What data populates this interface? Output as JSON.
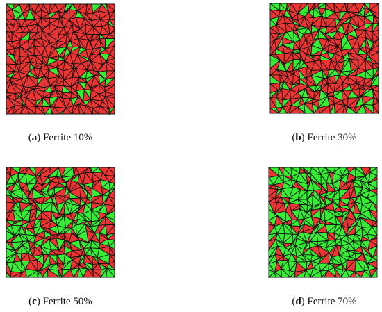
{
  "panels": [
    {
      "open": "(",
      "label": "a",
      "close": ")",
      "caption": "Ferrite 10%"
    },
    {
      "open": "(",
      "label": "b",
      "close": ")",
      "caption": "Ferrite 30%"
    },
    {
      "open": "(",
      "label": "c",
      "close": ")",
      "caption": "Ferrite 50%"
    },
    {
      "open": "(",
      "label": "d",
      "close": ")",
      "caption": "Ferrite 70%"
    }
  ]
}
